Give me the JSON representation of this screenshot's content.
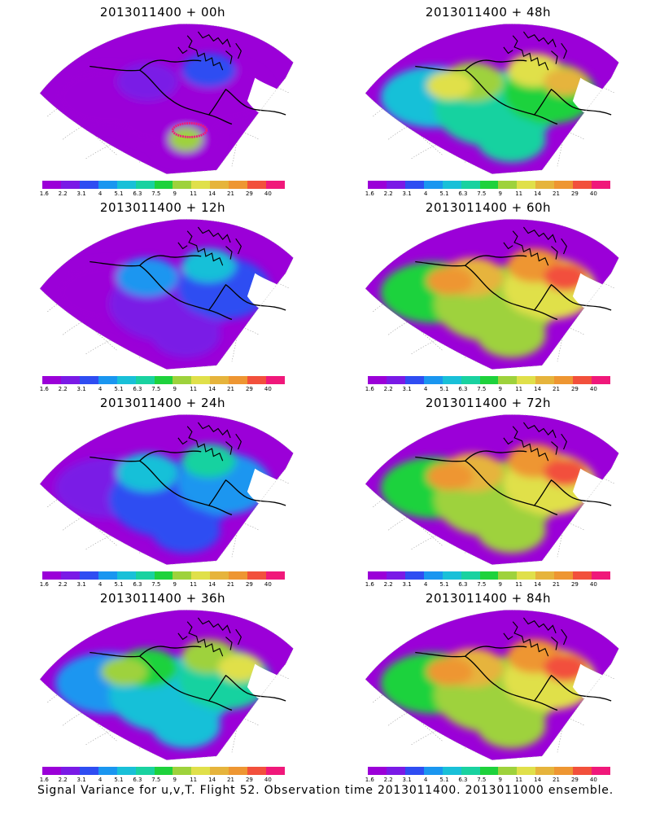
{
  "panels": [
    {
      "title": "2013011400 + 00h",
      "forecast_hour": 0
    },
    {
      "title": "2013011400 + 48h",
      "forecast_hour": 48
    },
    {
      "title": "2013011400 + 12h",
      "forecast_hour": 12
    },
    {
      "title": "2013011400 + 60h",
      "forecast_hour": 60
    },
    {
      "title": "2013011400 + 24h",
      "forecast_hour": 24
    },
    {
      "title": "2013011400 + 72h",
      "forecast_hour": 72
    },
    {
      "title": "2013011400 + 36h",
      "forecast_hour": 36
    },
    {
      "title": "2013011400 + 84h",
      "forecast_hour": 84
    }
  ],
  "colorbar": {
    "ticks": [
      "1.6",
      "2.2",
      "3.1",
      "4",
      "5.1",
      "6.3",
      "7.5",
      "9",
      "11",
      "14",
      "21",
      "29",
      "40"
    ],
    "colors": [
      "#9b00d8",
      "#7a1ae6",
      "#2f4df2",
      "#1a96f0",
      "#19c0d8",
      "#19d2a0",
      "#1ed23c",
      "#9ed23c",
      "#e0e04a",
      "#e6b43c",
      "#ee9632",
      "#f2503c",
      "#f0187a"
    ]
  },
  "caption": "Signal Variance for u,v,T. Flight 52. Observation time 2013011400. 2013011000 ensemble."
}
